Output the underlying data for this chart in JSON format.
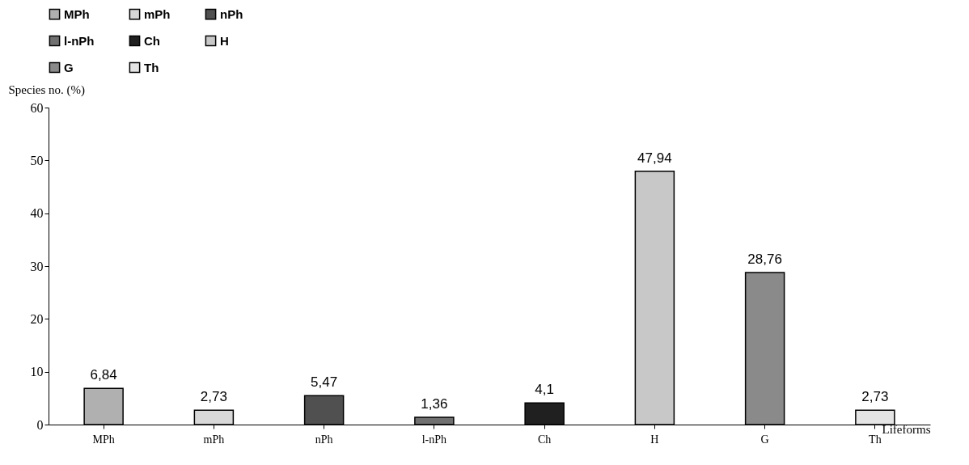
{
  "chart_data": {
    "type": "bar",
    "xlabel": "Lifeforms",
    "ylabel": "Species no. (%)",
    "categories": [
      "MPh",
      "mPh",
      "nPh",
      "l-nPh",
      "Ch",
      "H",
      "G",
      "Th"
    ],
    "series": [
      {
        "name": "MPh",
        "color": "#b0b0b0",
        "values": [
          6.84,
          null,
          null,
          null,
          null,
          null,
          null,
          null
        ],
        "value_labels": [
          "6,84",
          null,
          null,
          null,
          null,
          null,
          null,
          null
        ]
      },
      {
        "name": "mPh",
        "color": "#d8d8d8",
        "values": [
          null,
          2.73,
          null,
          null,
          null,
          null,
          null,
          null
        ],
        "value_labels": [
          null,
          "2,73",
          null,
          null,
          null,
          null,
          null,
          null
        ]
      },
      {
        "name": "nPh",
        "color": "#505050",
        "values": [
          null,
          null,
          5.47,
          null,
          null,
          null,
          null,
          null
        ],
        "value_labels": [
          null,
          null,
          "5,47",
          null,
          null,
          null,
          null,
          null
        ]
      },
      {
        "name": "l-nPh",
        "color": "#707070",
        "values": [
          null,
          null,
          null,
          1.36,
          null,
          null,
          null,
          null
        ],
        "value_labels": [
          null,
          null,
          null,
          "1,36",
          null,
          null,
          null,
          null
        ]
      },
      {
        "name": "Ch",
        "color": "#202020",
        "values": [
          null,
          null,
          null,
          null,
          4.1,
          null,
          null,
          null
        ],
        "value_labels": [
          null,
          null,
          null,
          null,
          "4,1",
          null,
          null,
          null
        ]
      },
      {
        "name": "H",
        "color": "#c8c8c8",
        "values": [
          null,
          null,
          null,
          null,
          null,
          47.94,
          null,
          null
        ],
        "value_labels": [
          null,
          null,
          null,
          null,
          null,
          "47,94",
          null,
          null
        ]
      },
      {
        "name": "G",
        "color": "#8a8a8a",
        "values": [
          null,
          null,
          null,
          null,
          null,
          null,
          28.76,
          null
        ],
        "value_labels": [
          null,
          null,
          null,
          null,
          null,
          null,
          "28,76",
          null
        ]
      },
      {
        "name": "Th",
        "color": "#e4e4e4",
        "values": [
          null,
          null,
          null,
          null,
          null,
          null,
          null,
          2.73
        ],
        "value_labels": [
          null,
          null,
          null,
          null,
          null,
          null,
          null,
          "2,73"
        ]
      }
    ],
    "ylim": [
      0,
      60
    ],
    "yticks": [
      0,
      10,
      20,
      30,
      40,
      50,
      60
    ],
    "grid": false,
    "legend": "top"
  }
}
